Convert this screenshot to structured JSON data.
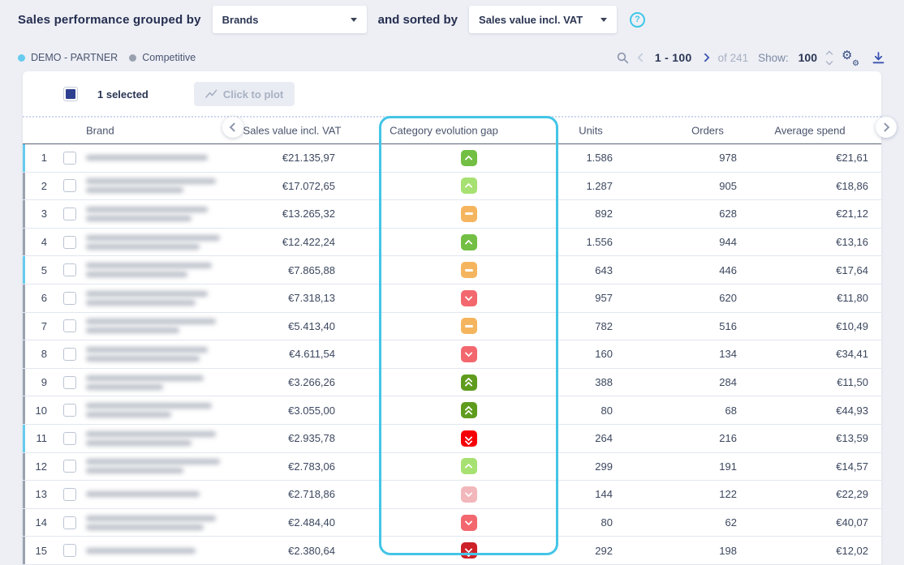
{
  "header": {
    "title": "Sales performance grouped by",
    "group_by_value": "Brands",
    "conjunction": "and sorted by",
    "sort_by_value": "Sales value incl. VAT",
    "help_glyph": "?"
  },
  "legend": {
    "partner_label": "DEMO - PARTNER",
    "competitive_label": "Competitive",
    "partner_color": "#66cbee",
    "competitive_color": "#9aa1ae"
  },
  "pagination": {
    "range": "1 - 100",
    "of_total": "of 241",
    "show_label": "Show:",
    "page_size": "100"
  },
  "toolbar": {
    "selected_count": "1 selected",
    "plot_button_label": "Click to plot"
  },
  "table": {
    "brand_names_blurred": true,
    "columns": {
      "brand": "Brand",
      "sales": "Sales value incl. VAT",
      "gap": "Category evolution gap",
      "units": "Units",
      "orders": "Orders",
      "avg": "Average spend"
    },
    "highlighted_column": "Category evolution gap",
    "rows": [
      {
        "index": "1",
        "group": "partner",
        "sales": "€21.135,97",
        "gap": "up",
        "units": "1.586",
        "orders": "978",
        "avg": "€21,61"
      },
      {
        "index": "2",
        "group": "competitive",
        "sales": "€17.072,65",
        "gap": "slight-up",
        "units": "1.287",
        "orders": "905",
        "avg": "€18,86"
      },
      {
        "index": "3",
        "group": "competitive",
        "sales": "€13.265,32",
        "gap": "flat",
        "units": "892",
        "orders": "628",
        "avg": "€21,12"
      },
      {
        "index": "4",
        "group": "competitive",
        "sales": "€12.422,24",
        "gap": "up",
        "units": "1.556",
        "orders": "944",
        "avg": "€13,16"
      },
      {
        "index": "5",
        "group": "partner",
        "sales": "€7.865,88",
        "gap": "flat",
        "units": "643",
        "orders": "446",
        "avg": "€17,64"
      },
      {
        "index": "6",
        "group": "competitive",
        "sales": "€7.318,13",
        "gap": "down",
        "units": "957",
        "orders": "620",
        "avg": "€11,80"
      },
      {
        "index": "7",
        "group": "competitive",
        "sales": "€5.413,40",
        "gap": "flat",
        "units": "782",
        "orders": "516",
        "avg": "€10,49"
      },
      {
        "index": "8",
        "group": "competitive",
        "sales": "€4.611,54",
        "gap": "down",
        "units": "160",
        "orders": "134",
        "avg": "€34,41"
      },
      {
        "index": "9",
        "group": "competitive",
        "sales": "€3.266,26",
        "gap": "strong-up",
        "units": "388",
        "orders": "284",
        "avg": "€11,50"
      },
      {
        "index": "10",
        "group": "competitive",
        "sales": "€3.055,00",
        "gap": "strong-up",
        "units": "80",
        "orders": "68",
        "avg": "€44,93"
      },
      {
        "index": "11",
        "group": "partner",
        "sales": "€2.935,78",
        "gap": "very-down",
        "units": "264",
        "orders": "216",
        "avg": "€13,59"
      },
      {
        "index": "12",
        "group": "competitive",
        "sales": "€2.783,06",
        "gap": "slight-up",
        "units": "299",
        "orders": "191",
        "avg": "€14,57"
      },
      {
        "index": "13",
        "group": "competitive",
        "sales": "€2.718,86",
        "gap": "slight-down",
        "units": "144",
        "orders": "122",
        "avg": "€22,29"
      },
      {
        "index": "14",
        "group": "competitive",
        "sales": "€2.484,40",
        "gap": "down",
        "units": "80",
        "orders": "62",
        "avg": "€40,07"
      },
      {
        "index": "15",
        "group": "competitive",
        "sales": "€2.380,64",
        "gap": "strong-down",
        "units": "292",
        "orders": "198",
        "avg": "€12,02"
      }
    ]
  },
  "gap_levels": {
    "strong-up": {
      "color": "#5f9c1e",
      "chevrons": 2,
      "dir": "up"
    },
    "up": {
      "color": "#72bf44",
      "chevrons": 1,
      "dir": "up"
    },
    "slight-up": {
      "color": "#a6e171",
      "chevrons": 1,
      "dir": "up"
    },
    "flat": {
      "color": "#f5b55e",
      "chevrons": 0,
      "dir": "flat"
    },
    "slight-down": {
      "color": "#f2b7bb",
      "chevrons": 1,
      "dir": "down"
    },
    "down": {
      "color": "#f2686e",
      "chevrons": 1,
      "dir": "down"
    },
    "very-down": {
      "color": "#f60008",
      "chevrons": 2,
      "dir": "down"
    },
    "strong-down": {
      "color": "#cd2127",
      "chevrons": 2,
      "dir": "down"
    }
  },
  "colors": {
    "accent_highlight": "#43c5e7",
    "page_background": "#edeff5",
    "card_background": "#ffffff",
    "primary_text": "#2b3553",
    "icon_blue": "#3a53ae"
  }
}
